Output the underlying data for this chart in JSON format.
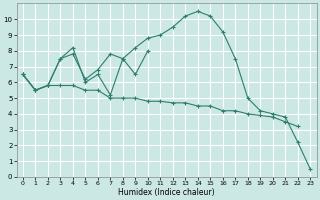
{
  "xlabel": "Humidex (Indice chaleur)",
  "bg_color": "#cce8e4",
  "grid_color": "#ffffff",
  "line_color": "#2e7d6e",
  "marker": "+",
  "xlim": [
    -0.5,
    23.5
  ],
  "ylim": [
    0,
    11
  ],
  "xticks": [
    0,
    1,
    2,
    3,
    4,
    5,
    6,
    7,
    8,
    9,
    10,
    11,
    12,
    13,
    14,
    15,
    16,
    17,
    18,
    19,
    20,
    21,
    22,
    23
  ],
  "yticks": [
    0,
    1,
    2,
    3,
    4,
    5,
    6,
    7,
    8,
    9,
    10
  ],
  "series": [
    {
      "x": [
        0,
        1,
        2,
        3,
        4,
        5,
        6,
        7,
        8,
        9,
        10,
        11,
        12,
        13,
        14,
        15,
        16,
        17,
        18,
        19,
        20,
        21,
        22,
        23
      ],
      "y": [
        6.5,
        5.5,
        5.8,
        7.5,
        8.2,
        6.0,
        6.5,
        5.2,
        7.5,
        8.2,
        8.8,
        9.0,
        9.5,
        10.2,
        10.5,
        10.2,
        9.2,
        7.5,
        5.0,
        4.2,
        4.0,
        3.8,
        2.2,
        0.5
      ]
    },
    {
      "x": [
        0,
        1,
        2,
        3,
        4,
        5,
        6,
        7,
        8,
        9,
        10
      ],
      "y": [
        6.5,
        5.5,
        5.8,
        7.5,
        7.8,
        6.2,
        6.8,
        7.8,
        7.5,
        6.5,
        8.0
      ]
    },
    {
      "x": [
        0,
        1,
        2,
        3,
        4,
        5,
        6,
        7,
        8,
        9,
        10,
        11,
        12,
        13,
        14,
        15,
        16,
        17,
        18,
        19,
        20,
        21,
        22
      ],
      "y": [
        6.5,
        5.5,
        5.8,
        5.8,
        5.8,
        5.5,
        5.5,
        5.0,
        5.0,
        5.0,
        4.8,
        4.8,
        4.7,
        4.7,
        4.5,
        4.5,
        4.2,
        4.2,
        4.0,
        3.9,
        3.8,
        3.5,
        3.2
      ]
    }
  ]
}
